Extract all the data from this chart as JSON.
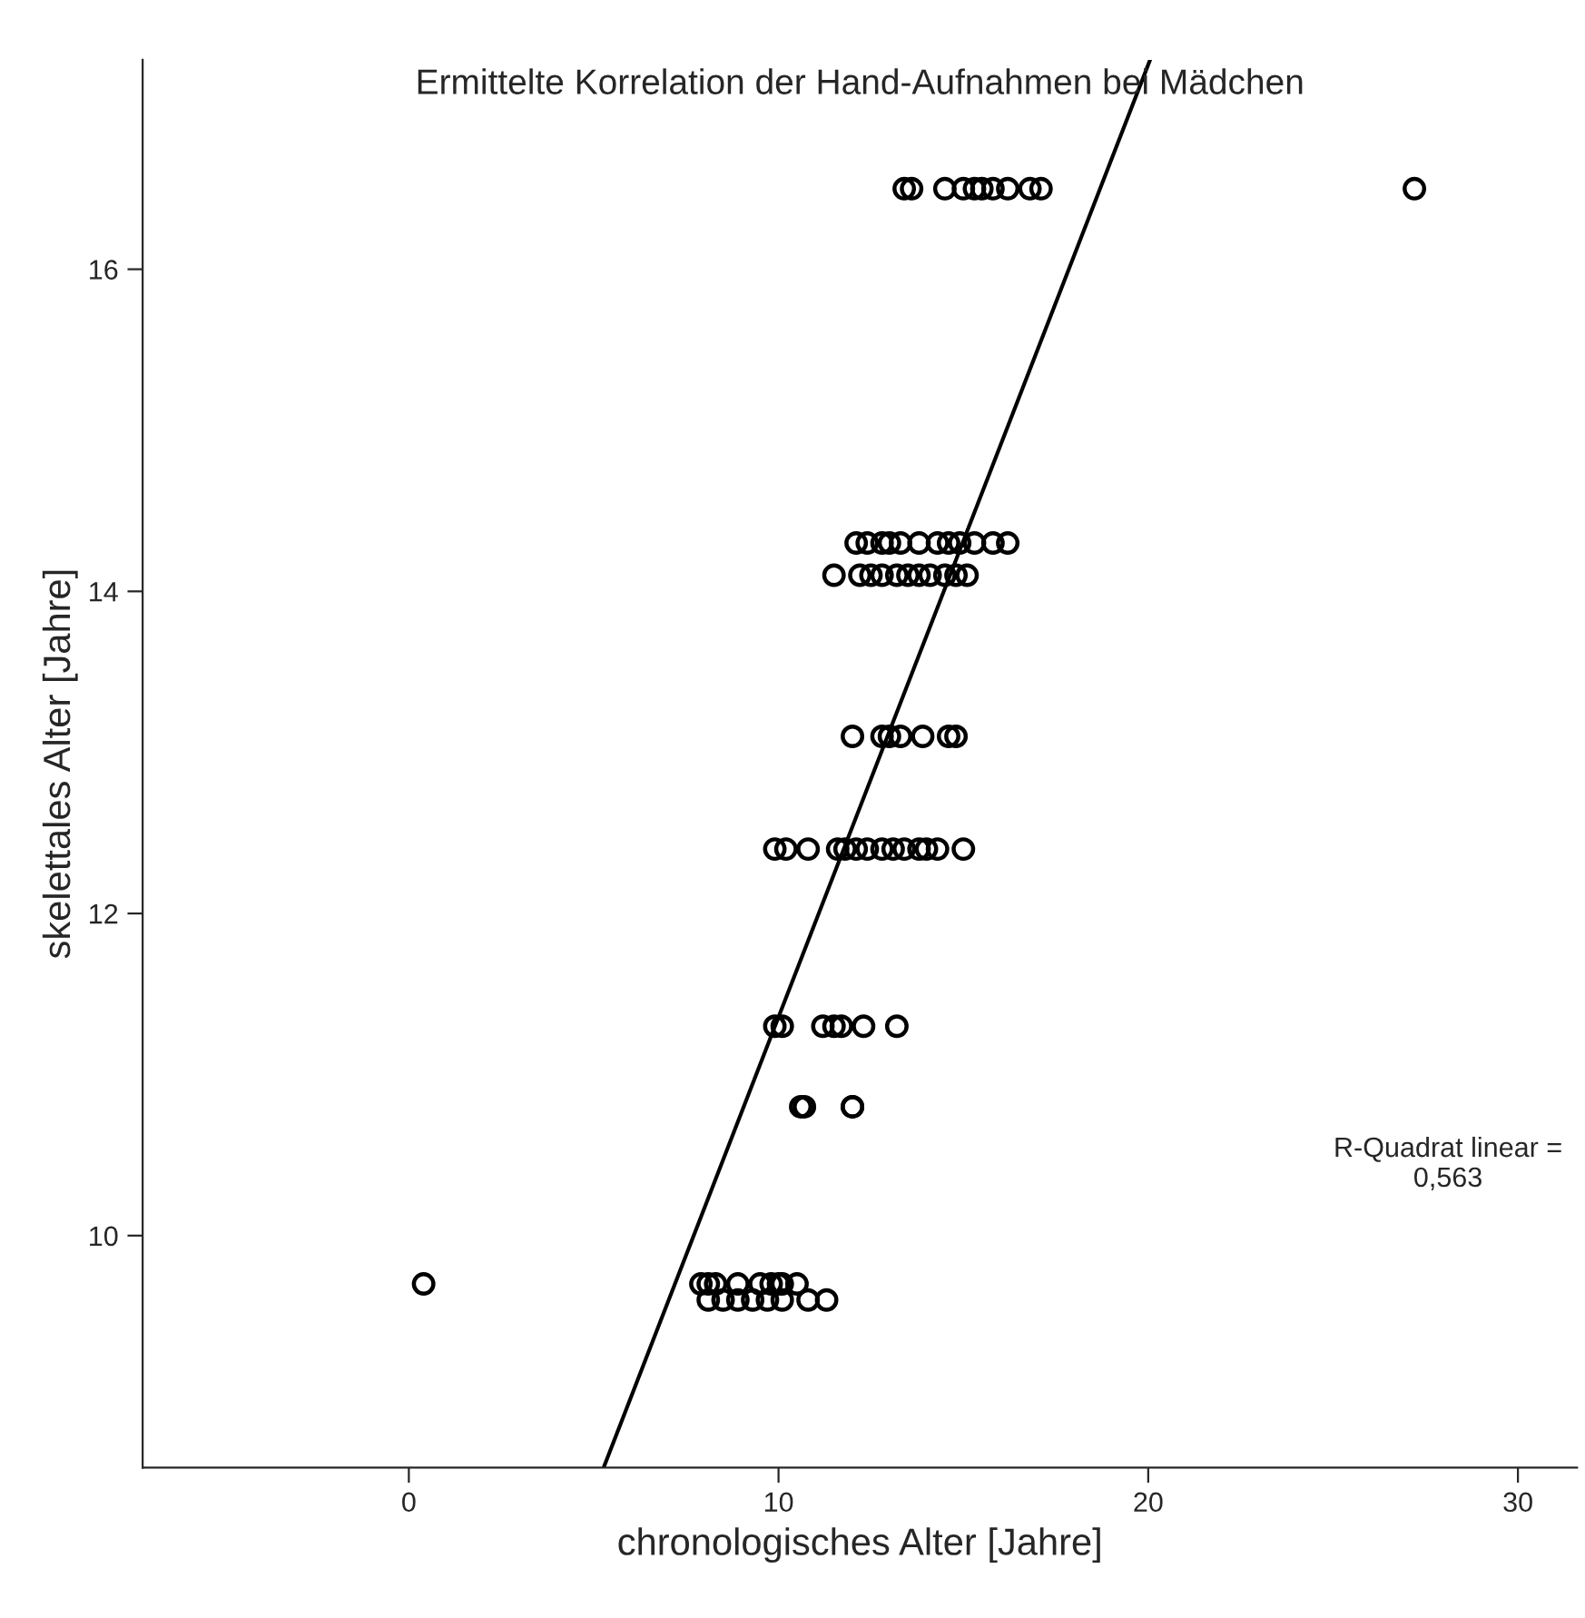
{
  "chart_data": {
    "type": "scatter",
    "title": "Ermittelte Korrelation der Hand-Aufnahmen bei Mädchen",
    "xlabel": "chronologisches Alter [Jahre]",
    "ylabel": "skelettales Alter [Jahre]",
    "xlim": [
      -7.2,
      31.6
    ],
    "ylim": [
      8.56,
      17.3
    ],
    "xticks": [
      0,
      10,
      20,
      30
    ],
    "yticks": [
      10,
      12,
      14,
      16
    ],
    "grid": false,
    "annotations": [
      "R-Quadrat linear =\n0,563"
    ],
    "series": [
      {
        "marker": "circle",
        "color": "#000000",
        "x": [
          13.4,
          13.6,
          14.5,
          15.0,
          15.3,
          15.5,
          15.8,
          16.2,
          16.8,
          17.1,
          27.2,
          12.1,
          12.4,
          12.8,
          13.0,
          13.3,
          13.8,
          14.3,
          14.6,
          14.9,
          15.3,
          15.8,
          16.2,
          11.5,
          12.2,
          12.5,
          12.8,
          13.2,
          13.5,
          13.8,
          14.1,
          14.5,
          14.8,
          15.1,
          12.0,
          12.8,
          13.0,
          13.3,
          13.9,
          14.6,
          14.8,
          9.9,
          10.2,
          10.8,
          11.6,
          11.8,
          12.1,
          12.4,
          12.8,
          13.1,
          13.4,
          13.8,
          14.0,
          14.3,
          15.0,
          9.9,
          10.1,
          11.2,
          11.5,
          11.7,
          12.3,
          13.2,
          10.6,
          10.7,
          12.0,
          12.0,
          0.4,
          7.9,
          8.1,
          8.3,
          8.9,
          9.5,
          9.8,
          10.0,
          10.1,
          10.5,
          8.1,
          8.5,
          8.9,
          9.3,
          9.7,
          10.1,
          10.8,
          11.3
        ],
        "values": [
          16.5,
          16.5,
          16.5,
          16.5,
          16.5,
          16.5,
          16.5,
          16.5,
          16.5,
          16.5,
          16.5,
          14.3,
          14.3,
          14.3,
          14.3,
          14.3,
          14.3,
          14.3,
          14.3,
          14.3,
          14.3,
          14.3,
          14.3,
          14.1,
          14.1,
          14.1,
          14.1,
          14.1,
          14.1,
          14.1,
          14.1,
          14.1,
          14.1,
          14.1,
          13.1,
          13.1,
          13.1,
          13.1,
          13.1,
          13.1,
          13.1,
          12.4,
          12.4,
          12.4,
          12.4,
          12.4,
          12.4,
          12.4,
          12.4,
          12.4,
          12.4,
          12.4,
          12.4,
          12.4,
          12.4,
          11.3,
          11.3,
          11.3,
          11.3,
          11.3,
          11.3,
          11.3,
          10.8,
          10.8,
          10.8,
          10.8,
          9.7,
          9.7,
          9.7,
          9.7,
          9.7,
          9.7,
          9.7,
          9.7,
          9.7,
          9.7,
          9.6,
          9.6,
          9.6,
          9.6,
          9.6,
          9.6,
          9.6,
          9.6
        ]
      },
      {
        "type": "line",
        "color": "#000000",
        "line_style": "solid",
        "x": [
          5.27,
          20.05
        ],
        "values": [
          8.56,
          17.3
        ]
      }
    ]
  }
}
